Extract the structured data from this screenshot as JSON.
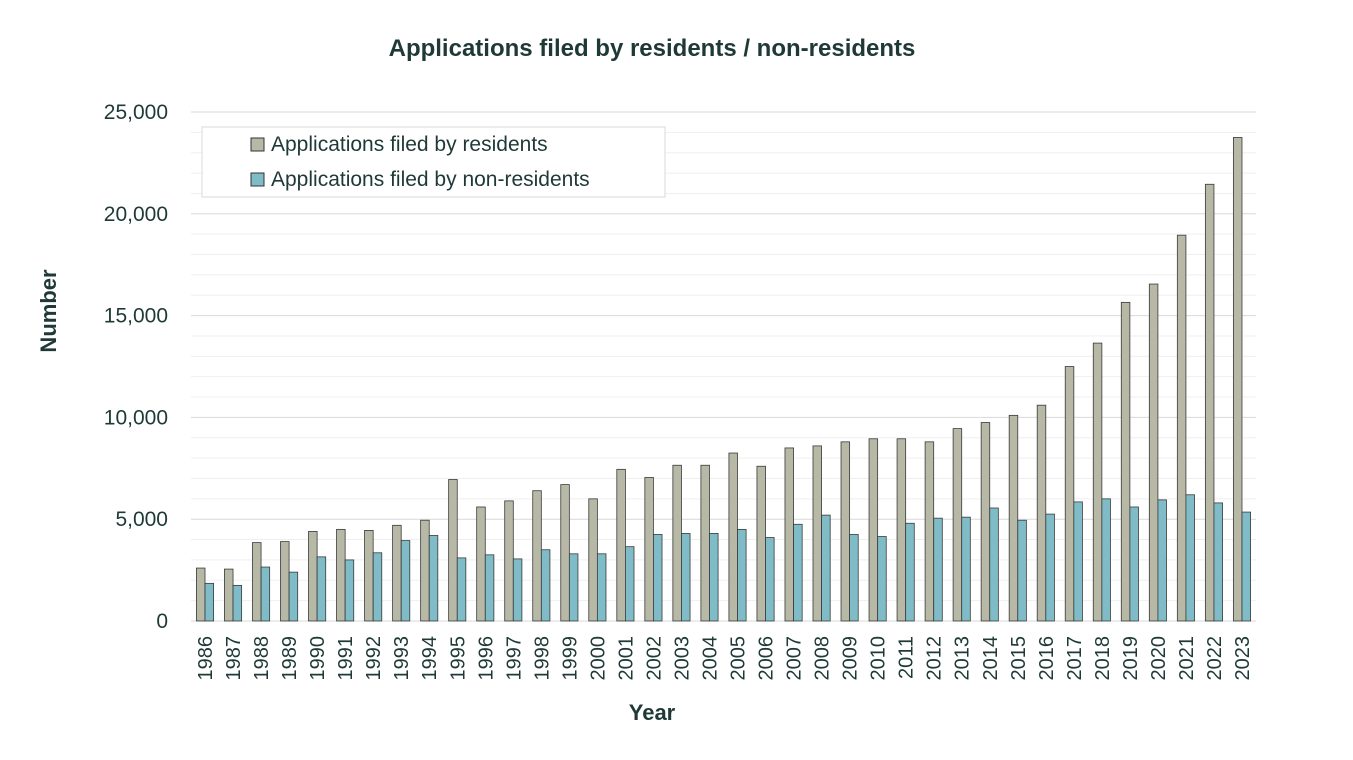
{
  "chart_data": {
    "type": "bar",
    "title": "Applications filed by residents / non-residents",
    "xlabel": "Year",
    "ylabel": "Number",
    "ylim": [
      0,
      25000
    ],
    "y_ticks": [
      0,
      5000,
      10000,
      15000,
      20000,
      25000
    ],
    "y_tick_labels": [
      "0",
      "5,000",
      "10,000",
      "15,000",
      "20,000",
      "25,000"
    ],
    "grid": "horizontal major and minor",
    "legend_position": "top-left",
    "categories": [
      "1986",
      "1987",
      "1988",
      "1989",
      "1990",
      "1991",
      "1992",
      "1993",
      "1994",
      "1995",
      "1996",
      "1997",
      "1998",
      "1999",
      "2000",
      "2001",
      "2002",
      "2003",
      "2004",
      "2005",
      "2006",
      "2007",
      "2008",
      "2009",
      "2010",
      "2011",
      "2012",
      "2013",
      "2014",
      "2015",
      "2016",
      "2017",
      "2018",
      "2019",
      "2020",
      "2021",
      "2022",
      "2023"
    ],
    "series": [
      {
        "name": "Applications filed by residents",
        "color": "#b7b8a6",
        "values": [
          2600,
          2550,
          3850,
          3900,
          4400,
          4500,
          4450,
          4700,
          4950,
          6950,
          5600,
          5900,
          6400,
          6700,
          6000,
          7450,
          7050,
          7650,
          7650,
          8250,
          7600,
          8500,
          8600,
          8800,
          8950,
          8950,
          8800,
          9450,
          9750,
          10100,
          10600,
          12500,
          13650,
          15650,
          16550,
          18950,
          21450,
          23750
        ]
      },
      {
        "name": "Applications filed by non-residents",
        "color": "#7fbcc7",
        "values": [
          1850,
          1750,
          2650,
          2400,
          3150,
          3000,
          3350,
          3950,
          4200,
          3100,
          3250,
          3050,
          3500,
          3300,
          3300,
          3650,
          4250,
          4300,
          4300,
          4500,
          4100,
          4750,
          5200,
          4250,
          4150,
          4800,
          5050,
          5100,
          5550,
          4950,
          5250,
          5850,
          6000,
          5600,
          5950,
          6200,
          5800,
          5350
        ]
      }
    ]
  }
}
